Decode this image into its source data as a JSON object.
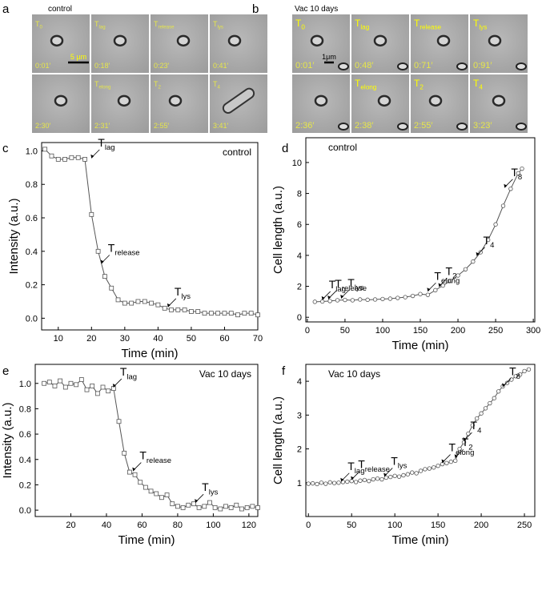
{
  "panels": [
    {
      "letter": "a",
      "condition": "control",
      "scale_bar": "5 µm",
      "frames": [
        {
          "label": {
            "main": "T",
            "sub": "0"
          },
          "time": "0:01′"
        },
        {
          "label": {
            "main": "T",
            "sub": "lag"
          },
          "time": "0:18′"
        },
        {
          "label": {
            "main": "T",
            "sub": "release"
          },
          "time": "0:23′"
        },
        {
          "label": {
            "main": "T",
            "sub": "lys"
          },
          "time": "0:41′"
        },
        {
          "label": null,
          "time": "2:30′"
        },
        {
          "label": {
            "main": "T",
            "sub": "elong"
          },
          "time": "2:31′"
        },
        {
          "label": {
            "main": "T",
            "sub": "2"
          },
          "time": "2:55′"
        },
        {
          "label": {
            "main": "T",
            "sub": "4"
          },
          "time": "3:41′"
        }
      ]
    },
    {
      "letter": "b",
      "condition": "Vac 10 days",
      "scale_bar": "1μm",
      "frames": [
        {
          "label": {
            "main": "T",
            "sub": "0"
          },
          "time": "0:01′"
        },
        {
          "label": {
            "main": "T",
            "sub": "lag"
          },
          "time": "0:48′"
        },
        {
          "label": {
            "main": "T",
            "sub": "release"
          },
          "time": "0:71′"
        },
        {
          "label": {
            "main": "T",
            "sub": "lys"
          },
          "time": "0:91′"
        },
        {
          "label": null,
          "time": "2:36′"
        },
        {
          "label": {
            "main": "T",
            "sub": "elong"
          },
          "time": "2:38′"
        },
        {
          "label": {
            "main": "T",
            "sub": "2"
          },
          "time": "2:55′"
        },
        {
          "label": {
            "main": "T",
            "sub": "4"
          },
          "time": "3:23′"
        }
      ]
    }
  ],
  "chart_data": [
    {
      "type": "line",
      "panel": "c",
      "label": "control",
      "label_corner": "upper right",
      "xlabel": "Time (min)",
      "ylabel": "Intensity (a.u.)",
      "marker": "square",
      "color": "#555555",
      "xlim": [
        5,
        70
      ],
      "xticks": [
        10,
        20,
        30,
        40,
        50,
        60,
        70
      ],
      "ylim": [
        -0.07,
        1.05
      ],
      "yticks": [
        {
          "value": 0,
          "label": "0.0"
        },
        0.2,
        0.4,
        0.6,
        0.8,
        {
          "value": 1,
          "label": "1.0"
        }
      ],
      "x": [
        6,
        8,
        10,
        12,
        14,
        16,
        18,
        20,
        22,
        24,
        26,
        28,
        30,
        32,
        34,
        36,
        38,
        40,
        42,
        44,
        46,
        48,
        50,
        52,
        54,
        56,
        58,
        60,
        62,
        64,
        66,
        68,
        70
      ],
      "values": [
        1.01,
        0.97,
        0.95,
        0.95,
        0.96,
        0.96,
        0.95,
        0.62,
        0.4,
        0.25,
        0.18,
        0.11,
        0.09,
        0.09,
        0.1,
        0.1,
        0.09,
        0.08,
        0.06,
        0.05,
        0.05,
        0.05,
        0.04,
        0.04,
        0.03,
        0.03,
        0.03,
        0.03,
        0.03,
        0.02,
        0.03,
        0.03,
        0.02
      ],
      "annotations": [
        {
          "label": {
            "main": "T",
            "sub": "lag"
          },
          "x": 20,
          "y": 0.95
        },
        {
          "label": {
            "main": "T",
            "sub": "release"
          },
          "x": 23,
          "y": 0.32
        },
        {
          "label": {
            "main": "T",
            "sub": "lys"
          },
          "x": 43,
          "y": 0.06
        }
      ]
    },
    {
      "type": "line",
      "panel": "d",
      "label": "control",
      "label_corner": "upper left",
      "xlabel": "Time (min)",
      "ylabel": "Cell length (a.u.)",
      "marker": "circle",
      "color": "#555555",
      "xlim": [
        -2,
        302
      ],
      "xticks": [
        0,
        50,
        100,
        150,
        200,
        250,
        300
      ],
      "ylim": [
        -0.3,
        11.6
      ],
      "yticks": [
        0,
        2,
        4,
        6,
        8,
        10
      ],
      "x": [
        10,
        20,
        30,
        40,
        50,
        60,
        70,
        80,
        90,
        100,
        110,
        120,
        130,
        140,
        150,
        160,
        170,
        180,
        190,
        200,
        210,
        220,
        230,
        240,
        250,
        260,
        270,
        280,
        285
      ],
      "values": [
        1.0,
        1.02,
        1.05,
        1.1,
        1.12,
        1.1,
        1.15,
        1.13,
        1.15,
        1.18,
        1.2,
        1.25,
        1.3,
        1.38,
        1.5,
        1.45,
        1.75,
        2.05,
        2.35,
        2.7,
        3.1,
        3.6,
        4.2,
        5.0,
        6.0,
        7.2,
        8.3,
        9.3,
        9.6
      ],
      "annotations": [
        {
          "label": {
            "main": "T",
            "sub": "lag"
          },
          "x": 20,
          "y": 1.05
        },
        {
          "label": {
            "main": "T",
            "sub": "release"
          },
          "x": 28,
          "y": 1.1
        },
        {
          "label": {
            "main": "T",
            "sub": "lys"
          },
          "x": 45,
          "y": 1.15
        },
        {
          "label": {
            "main": "T",
            "sub": "elong"
          },
          "x": 160,
          "y": 1.6
        },
        {
          "label": {
            "main": "T",
            "sub": "2"
          },
          "x": 175,
          "y": 1.9
        },
        {
          "label": {
            "main": "T",
            "sub": "4"
          },
          "x": 225,
          "y": 3.9
        },
        {
          "label": {
            "main": "T",
            "sub": "8"
          },
          "x": 262,
          "y": 8.3
        }
      ]
    },
    {
      "type": "line",
      "panel": "e",
      "label": "Vac 10 days",
      "label_corner": "upper right",
      "xlabel": "Time (min)",
      "ylabel": "Intensity (a.u.)",
      "marker": "square",
      "color": "#555555",
      "xlim": [
        0,
        125
      ],
      "xticks": [
        20,
        40,
        60,
        80,
        100,
        120
      ],
      "ylim": [
        -0.05,
        1.15
      ],
      "yticks": [
        {
          "value": 0,
          "label": "0.0"
        },
        0.2,
        0.4,
        0.6,
        0.8,
        {
          "value": 1,
          "label": "1.0"
        }
      ],
      "x": [
        5,
        8,
        11,
        14,
        17,
        20,
        23,
        26,
        29,
        32,
        35,
        38,
        41,
        44,
        47,
        50,
        53,
        56,
        59,
        62,
        65,
        68,
        71,
        74,
        77,
        80,
        83,
        86,
        89,
        92,
        95,
        98,
        101,
        104,
        107,
        110,
        113,
        116,
        119,
        122,
        125
      ],
      "values": [
        1.0,
        1.01,
        0.98,
        1.02,
        0.97,
        1.0,
        0.99,
        1.03,
        0.95,
        0.98,
        0.92,
        0.97,
        0.94,
        0.96,
        0.7,
        0.45,
        0.3,
        0.28,
        0.22,
        0.18,
        0.15,
        0.13,
        0.1,
        0.12,
        0.05,
        0.03,
        0.02,
        0.04,
        0.05,
        0.02,
        0.03,
        0.06,
        0.02,
        0.01,
        0.03,
        0.02,
        0.04,
        0.01,
        0.02,
        0.03,
        0.02
      ],
      "annotations": [
        {
          "label": {
            "main": "T",
            "sub": "lag"
          },
          "x": 44,
          "y": 0.96
        },
        {
          "label": {
            "main": "T",
            "sub": "release"
          },
          "x": 55,
          "y": 0.3
        },
        {
          "label": {
            "main": "T",
            "sub": "lys"
          },
          "x": 90,
          "y": 0.05
        }
      ]
    },
    {
      "type": "line",
      "panel": "f",
      "label": "Vac 10 days",
      "label_corner": "upper left",
      "xlabel": "Time (min)",
      "ylabel": "Cell length (a.u.)",
      "marker": "circle",
      "color": "#555555",
      "xlim": [
        -3,
        262
      ],
      "xticks": [
        0,
        50,
        100,
        150,
        200,
        250
      ],
      "ylim": [
        0,
        4.5
      ],
      "yticks": [
        1,
        2,
        3,
        4
      ],
      "x": [
        0,
        5,
        10,
        15,
        20,
        25,
        30,
        35,
        40,
        45,
        50,
        55,
        60,
        65,
        70,
        75,
        80,
        85,
        90,
        95,
        100,
        105,
        110,
        115,
        120,
        125,
        130,
        135,
        140,
        145,
        150,
        155,
        160,
        165,
        170,
        175,
        180,
        185,
        190,
        195,
        200,
        205,
        210,
        215,
        220,
        225,
        230,
        235,
        240,
        245,
        250,
        255
      ],
      "values": [
        0.97,
        0.98,
        0.96,
        1.0,
        0.97,
        1.01,
        0.99,
        1.0,
        1.02,
        1.03,
        1.05,
        1.02,
        1.06,
        1.08,
        1.05,
        1.1,
        1.12,
        1.1,
        1.15,
        1.17,
        1.2,
        1.18,
        1.22,
        1.25,
        1.3,
        1.28,
        1.35,
        1.4,
        1.42,
        1.45,
        1.5,
        1.55,
        1.58,
        1.62,
        1.65,
        2.0,
        2.2,
        2.45,
        2.7,
        2.9,
        3.05,
        3.2,
        3.35,
        3.5,
        3.7,
        3.85,
        3.95,
        4.05,
        4.15,
        4.2,
        4.3,
        4.35
      ],
      "annotations": [
        {
          "label": {
            "main": "T",
            "sub": "lag"
          },
          "x": 38,
          "y": 1.0
        },
        {
          "label": {
            "main": "T",
            "sub": "release"
          },
          "x": 50,
          "y": 1.05
        },
        {
          "label": {
            "main": "T",
            "sub": "lys"
          },
          "x": 88,
          "y": 1.15
        },
        {
          "label": {
            "main": "T",
            "sub": "elong"
          },
          "x": 155,
          "y": 1.55
        },
        {
          "label": {
            "main": "T",
            "sub": "2"
          },
          "x": 170,
          "y": 1.7
        },
        {
          "label": {
            "main": "T",
            "sub": "4"
          },
          "x": 180,
          "y": 2.2
        },
        {
          "label": {
            "main": "T",
            "sub": "8"
          },
          "x": 225,
          "y": 3.8
        }
      ]
    }
  ]
}
